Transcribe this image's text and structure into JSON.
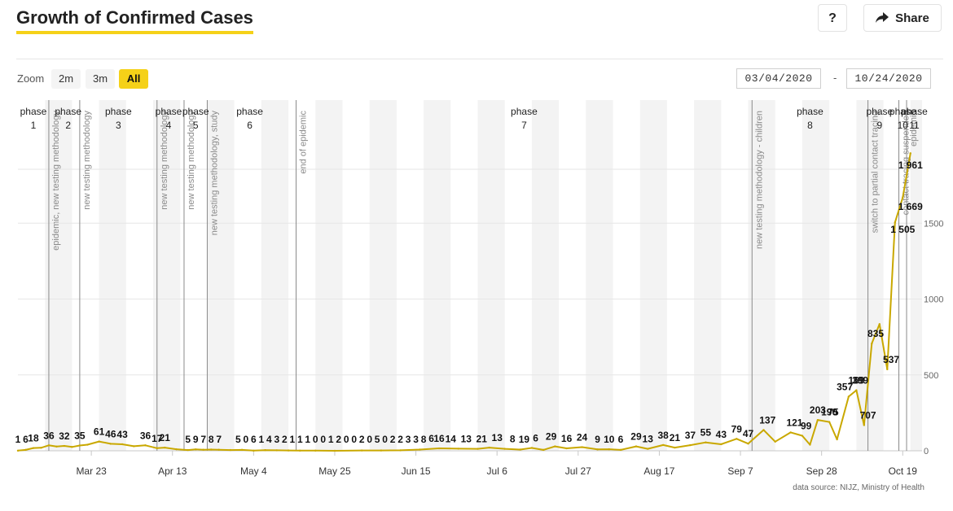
{
  "header": {
    "title": "Growth of Confirmed Cases",
    "help_label": "?",
    "share_label": "Share"
  },
  "toolbar": {
    "zoom_label": "Zoom",
    "zoom_options": [
      "2m",
      "3m",
      "All"
    ],
    "zoom_selected": "All",
    "date_from": "03/04/2020",
    "date_separator": "-",
    "date_to": "10/24/2020"
  },
  "source_text": "data source: NIJZ, Ministry of Health",
  "colors": {
    "accent": "#f5d118",
    "line": "#c9a800",
    "grid": "#e6e6e6",
    "band": "#f3f3f3"
  },
  "chart_data": {
    "type": "line",
    "title": "Growth of Confirmed Cases",
    "x_start": "2020-03-04",
    "x_end": "2020-10-24",
    "x_ticks": [
      {
        "date": "2020-03-23",
        "label": "Mar 23"
      },
      {
        "date": "2020-04-13",
        "label": "Apr 13"
      },
      {
        "date": "2020-05-04",
        "label": "May 4"
      },
      {
        "date": "2020-05-25",
        "label": "May 25"
      },
      {
        "date": "2020-06-15",
        "label": "Jun 15"
      },
      {
        "date": "2020-07-06",
        "label": "Jul 6"
      },
      {
        "date": "2020-07-27",
        "label": "Jul 27"
      },
      {
        "date": "2020-08-17",
        "label": "Aug 17"
      },
      {
        "date": "2020-09-07",
        "label": "Sep 7"
      },
      {
        "date": "2020-09-28",
        "label": "Sep 28"
      },
      {
        "date": "2020-10-19",
        "label": "Oct 19"
      }
    ],
    "y_ticks": [
      0,
      500,
      1000,
      1500
    ],
    "ylim": [
      0,
      2000
    ],
    "grid": true,
    "phases": [
      {
        "label": "phase",
        "number": "1",
        "center": "2020-03-08"
      },
      {
        "label": "phase",
        "number": "2",
        "center": "2020-03-17"
      },
      {
        "label": "phase",
        "number": "3",
        "center": "2020-03-30"
      },
      {
        "label": "phase",
        "number": "4",
        "center": "2020-04-12"
      },
      {
        "label": "phase",
        "number": "5",
        "center": "2020-04-19"
      },
      {
        "label": "phase",
        "number": "6",
        "center": "2020-05-03"
      },
      {
        "label": "phase",
        "number": "7",
        "center": "2020-07-13"
      },
      {
        "label": "phase",
        "number": "8",
        "center": "2020-09-25"
      },
      {
        "label": "phase",
        "number": "9",
        "center": "2020-10-13"
      },
      {
        "label": "phase",
        "number": "10",
        "center": "2020-10-19"
      },
      {
        "label": "phase",
        "number": "11",
        "center": "2020-10-22"
      }
    ],
    "events": [
      {
        "date": "2020-03-12",
        "label": "epidemic, new testing methodology"
      },
      {
        "date": "2020-03-20",
        "label": "new testing methodology"
      },
      {
        "date": "2020-04-09",
        "label": "new testing methodology"
      },
      {
        "date": "2020-04-16",
        "label": "new testing methodology"
      },
      {
        "date": "2020-04-22",
        "label": "new testing methodology, study"
      },
      {
        "date": "2020-05-15",
        "label": "end of epidemic"
      },
      {
        "date": "2020-09-10",
        "label": "new testing methodology - children"
      },
      {
        "date": "2020-10-10",
        "label": "switch to partial contact tracing"
      },
      {
        "date": "2020-10-18",
        "label": "contact tracing suspended"
      },
      {
        "date": "2020-10-20",
        "label": "epidemic"
      }
    ],
    "series": [
      {
        "values": [
          {
            "date": "2020-03-04",
            "y": 1
          },
          {
            "date": "2020-03-06",
            "y": 6
          },
          {
            "date": "2020-03-08",
            "y": 18
          },
          {
            "date": "2020-03-10",
            "y": 20
          },
          {
            "date": "2020-03-12",
            "y": 36
          },
          {
            "date": "2020-03-14",
            "y": 28
          },
          {
            "date": "2020-03-16",
            "y": 32
          },
          {
            "date": "2020-03-18",
            "y": 25
          },
          {
            "date": "2020-03-20",
            "y": 35
          },
          {
            "date": "2020-03-22",
            "y": 40
          },
          {
            "date": "2020-03-25",
            "y": 61
          },
          {
            "date": "2020-03-28",
            "y": 46
          },
          {
            "date": "2020-03-31",
            "y": 43
          },
          {
            "date": "2020-04-03",
            "y": 30
          },
          {
            "date": "2020-04-06",
            "y": 36
          },
          {
            "date": "2020-04-09",
            "y": 17
          },
          {
            "date": "2020-04-11",
            "y": 21
          },
          {
            "date": "2020-04-14",
            "y": 10
          },
          {
            "date": "2020-04-17",
            "y": 5
          },
          {
            "date": "2020-04-19",
            "y": 9
          },
          {
            "date": "2020-04-21",
            "y": 7
          },
          {
            "date": "2020-04-23",
            "y": 8
          },
          {
            "date": "2020-04-25",
            "y": 7
          },
          {
            "date": "2020-04-28",
            "y": 5
          },
          {
            "date": "2020-05-01",
            "y": 6
          },
          {
            "date": "2020-05-04",
            "y": 1
          },
          {
            "date": "2020-05-07",
            "y": 4
          },
          {
            "date": "2020-05-10",
            "y": 3
          },
          {
            "date": "2020-05-13",
            "y": 2
          },
          {
            "date": "2020-05-16",
            "y": 1
          },
          {
            "date": "2020-05-20",
            "y": 1
          },
          {
            "date": "2020-05-25",
            "y": 0
          },
          {
            "date": "2020-06-01",
            "y": 2
          },
          {
            "date": "2020-06-06",
            "y": 2
          },
          {
            "date": "2020-06-11",
            "y": 3
          },
          {
            "date": "2020-06-16",
            "y": 8
          },
          {
            "date": "2020-06-21",
            "y": 16
          },
          {
            "date": "2020-06-26",
            "y": 14
          },
          {
            "date": "2020-07-01",
            "y": 13
          },
          {
            "date": "2020-07-04",
            "y": 21
          },
          {
            "date": "2020-07-08",
            "y": 13
          },
          {
            "date": "2020-07-12",
            "y": 8
          },
          {
            "date": "2020-07-15",
            "y": 19
          },
          {
            "date": "2020-07-18",
            "y": 6
          },
          {
            "date": "2020-07-21",
            "y": 29
          },
          {
            "date": "2020-07-24",
            "y": 16
          },
          {
            "date": "2020-07-28",
            "y": 24
          },
          {
            "date": "2020-08-01",
            "y": 9
          },
          {
            "date": "2020-08-04",
            "y": 10
          },
          {
            "date": "2020-08-07",
            "y": 6
          },
          {
            "date": "2020-08-11",
            "y": 29
          },
          {
            "date": "2020-08-14",
            "y": 13
          },
          {
            "date": "2020-08-18",
            "y": 38
          },
          {
            "date": "2020-08-21",
            "y": 21
          },
          {
            "date": "2020-08-25",
            "y": 37
          },
          {
            "date": "2020-08-29",
            "y": 55
          },
          {
            "date": "2020-09-02",
            "y": 43
          },
          {
            "date": "2020-09-06",
            "y": 79
          },
          {
            "date": "2020-09-09",
            "y": 47
          },
          {
            "date": "2020-09-13",
            "y": 137
          },
          {
            "date": "2020-09-16",
            "y": 60
          },
          {
            "date": "2020-09-20",
            "y": 121
          },
          {
            "date": "2020-09-23",
            "y": 99
          },
          {
            "date": "2020-09-25",
            "y": 40
          },
          {
            "date": "2020-09-27",
            "y": 203
          },
          {
            "date": "2020-09-30",
            "y": 190
          },
          {
            "date": "2020-10-02",
            "y": 75
          },
          {
            "date": "2020-10-05",
            "y": 357
          },
          {
            "date": "2020-10-07",
            "y": 399
          },
          {
            "date": "2020-10-09",
            "y": 169
          },
          {
            "date": "2020-10-11",
            "y": 707
          },
          {
            "date": "2020-10-13",
            "y": 835
          },
          {
            "date": "2020-10-15",
            "y": 537
          },
          {
            "date": "2020-10-17",
            "y": 1505
          },
          {
            "date": "2020-10-19",
            "y": 1669
          },
          {
            "date": "2020-10-21",
            "y": 1961
          }
        ]
      }
    ],
    "data_labels": [
      {
        "date": "2020-03-04",
        "text": "1"
      },
      {
        "date": "2020-03-06",
        "text": "6"
      },
      {
        "date": "2020-03-08",
        "text": "18"
      },
      {
        "date": "2020-03-12",
        "text": "36"
      },
      {
        "date": "2020-03-16",
        "text": "32"
      },
      {
        "date": "2020-03-20",
        "text": "35"
      },
      {
        "date": "2020-03-25",
        "text": "61"
      },
      {
        "date": "2020-03-28",
        "text": "46"
      },
      {
        "date": "2020-03-31",
        "text": "43"
      },
      {
        "date": "2020-04-06",
        "text": "36"
      },
      {
        "date": "2020-04-09",
        "text": "17"
      },
      {
        "date": "2020-04-11",
        "text": "21"
      },
      {
        "date": "2020-04-17",
        "text": "5"
      },
      {
        "date": "2020-04-19",
        "text": "9"
      },
      {
        "date": "2020-04-21",
        "text": "7"
      },
      {
        "date": "2020-04-23",
        "text": "8"
      },
      {
        "date": "2020-04-25",
        "text": "7"
      },
      {
        "date": "2020-04-30",
        "text": "5"
      },
      {
        "date": "2020-05-02",
        "text": "0"
      },
      {
        "date": "2020-05-04",
        "text": "6"
      },
      {
        "date": "2020-05-06",
        "text": "1"
      },
      {
        "date": "2020-05-08",
        "text": "4"
      },
      {
        "date": "2020-05-10",
        "text": "3"
      },
      {
        "date": "2020-05-12",
        "text": "2"
      },
      {
        "date": "2020-05-14",
        "text": "1"
      },
      {
        "date": "2020-05-16",
        "text": "1"
      },
      {
        "date": "2020-05-18",
        "text": "1"
      },
      {
        "date": "2020-05-20",
        "text": "0"
      },
      {
        "date": "2020-05-22",
        "text": "0"
      },
      {
        "date": "2020-05-24",
        "text": "1"
      },
      {
        "date": "2020-05-26",
        "text": "2"
      },
      {
        "date": "2020-05-28",
        "text": "0"
      },
      {
        "date": "2020-05-30",
        "text": "0"
      },
      {
        "date": "2020-06-01",
        "text": "2"
      },
      {
        "date": "2020-06-03",
        "text": "0"
      },
      {
        "date": "2020-06-05",
        "text": "5"
      },
      {
        "date": "2020-06-07",
        "text": "0"
      },
      {
        "date": "2020-06-09",
        "text": "2"
      },
      {
        "date": "2020-06-11",
        "text": "2"
      },
      {
        "date": "2020-06-13",
        "text": "3"
      },
      {
        "date": "2020-06-15",
        "text": "3"
      },
      {
        "date": "2020-06-17",
        "text": "8"
      },
      {
        "date": "2020-06-19",
        "text": "6"
      },
      {
        "date": "2020-06-21",
        "text": "16"
      },
      {
        "date": "2020-06-24",
        "text": "14"
      },
      {
        "date": "2020-06-28",
        "text": "13"
      },
      {
        "date": "2020-07-02",
        "text": "21"
      },
      {
        "date": "2020-07-06",
        "text": "13"
      },
      {
        "date": "2020-07-10",
        "text": "8"
      },
      {
        "date": "2020-07-13",
        "text": "19"
      },
      {
        "date": "2020-07-16",
        "text": "6"
      },
      {
        "date": "2020-07-20",
        "text": "29"
      },
      {
        "date": "2020-07-24",
        "text": "16"
      },
      {
        "date": "2020-07-28",
        "text": "24"
      },
      {
        "date": "2020-08-01",
        "text": "9"
      },
      {
        "date": "2020-08-04",
        "text": "10"
      },
      {
        "date": "2020-08-07",
        "text": "6"
      },
      {
        "date": "2020-08-11",
        "text": "29"
      },
      {
        "date": "2020-08-14",
        "text": "13"
      },
      {
        "date": "2020-08-18",
        "text": "38"
      },
      {
        "date": "2020-08-21",
        "text": "21"
      },
      {
        "date": "2020-08-25",
        "text": "37"
      },
      {
        "date": "2020-08-29",
        "text": "55"
      },
      {
        "date": "2020-09-02",
        "text": "43"
      },
      {
        "date": "2020-09-06",
        "text": "79"
      },
      {
        "date": "2020-09-09",
        "text": "47"
      },
      {
        "date": "2020-09-14",
        "text": "137"
      },
      {
        "date": "2020-09-21",
        "text": "121"
      },
      {
        "date": "2020-09-24",
        "text": "99"
      },
      {
        "date": "2020-09-27",
        "text": "203"
      },
      {
        "date": "2020-09-30",
        "text": "190"
      },
      {
        "date": "2020-10-01",
        "text": "75"
      },
      {
        "date": "2020-10-04",
        "text": "357"
      },
      {
        "date": "2020-10-08",
        "text": "399"
      },
      {
        "date": "2020-10-07",
        "text": "169"
      },
      {
        "date": "2020-10-10",
        "text": "707"
      },
      {
        "date": "2020-10-12",
        "text": "835"
      },
      {
        "date": "2020-10-16",
        "text": "537"
      },
      {
        "date": "2020-10-19",
        "text": "1 505"
      },
      {
        "date": "2020-10-21",
        "text": "1 669"
      },
      {
        "date": "2020-10-21",
        "text": "1 961"
      }
    ]
  }
}
